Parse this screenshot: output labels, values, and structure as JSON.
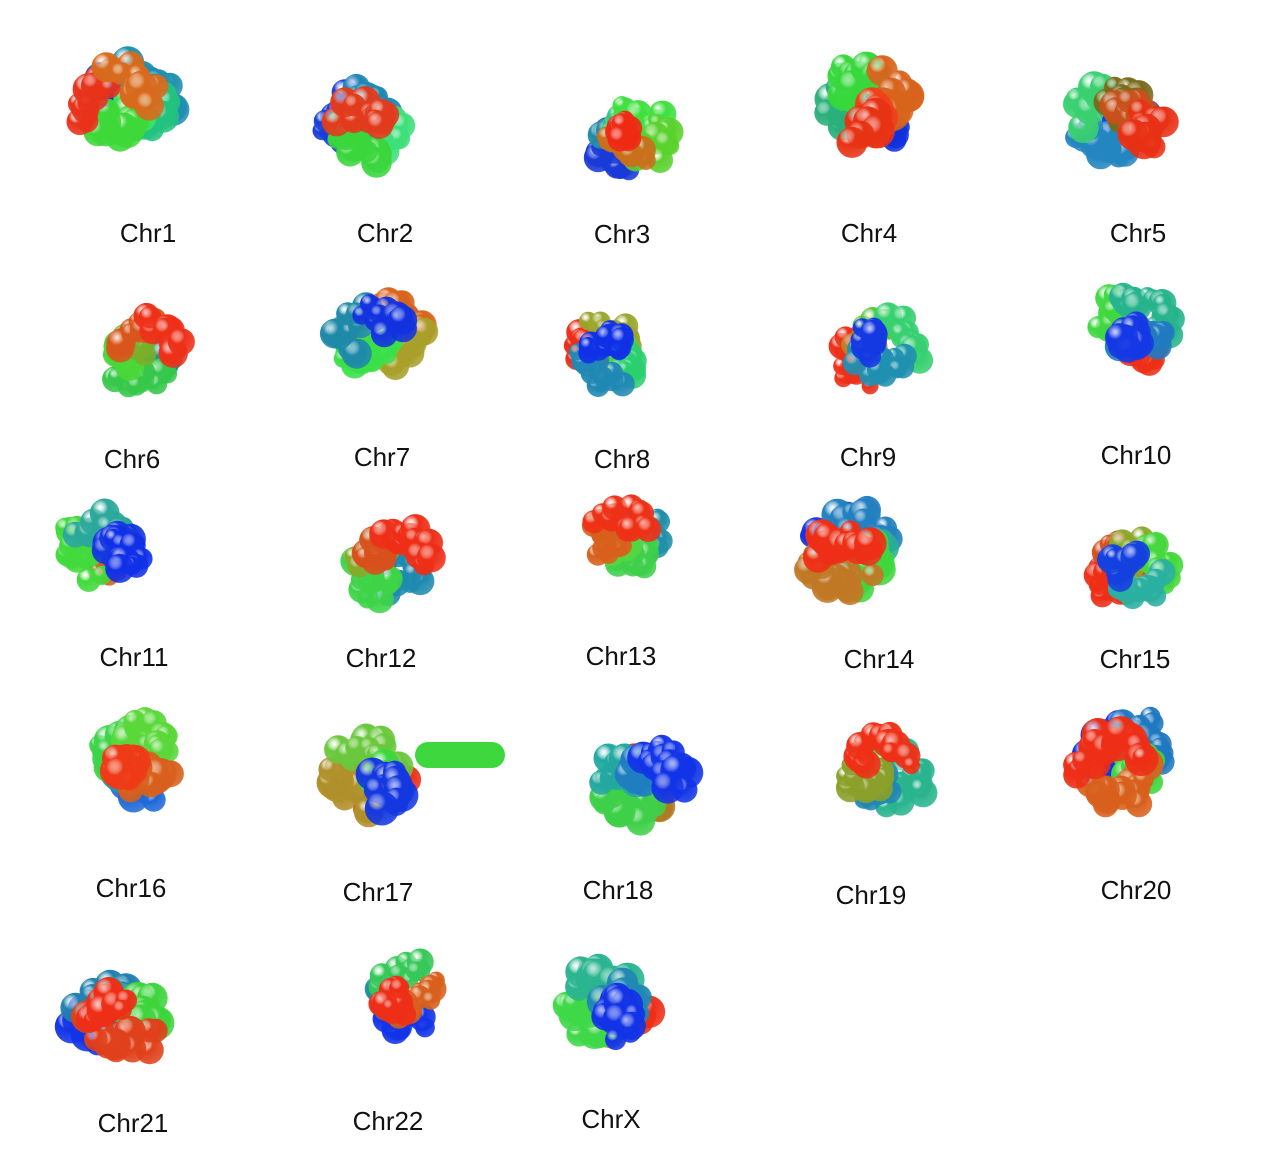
{
  "chromosomes": [
    {
      "label": "Chr1",
      "palette": [
        "#1434e0",
        "#1e8fb0",
        "#22c37e",
        "#39e85a",
        "#3ed838",
        "#e8321a",
        "#d86a1c"
      ]
    },
    {
      "label": "Chr2",
      "palette": [
        "#1a3fd8",
        "#2088b4",
        "#22c68a",
        "#3ee07a",
        "#3ad63c",
        "#e23a1c"
      ]
    },
    {
      "label": "Chr3",
      "palette": [
        "#1a3ad8",
        "#228aa6",
        "#34c87a",
        "#40e040",
        "#5ad22e",
        "#c8701c",
        "#ee2a14"
      ]
    },
    {
      "label": "Chr4",
      "palette": [
        "#1030e0",
        "#1f7ea8",
        "#2ab07a",
        "#36d83c",
        "#d8641c",
        "#f0401a",
        "#e83214"
      ]
    },
    {
      "label": "Chr5",
      "palette": [
        "#1640e6",
        "#1e5ce0",
        "#2386c0",
        "#3ad070",
        "#7a6a1a",
        "#c8501a",
        "#e83014"
      ]
    },
    {
      "label": "Chr6",
      "palette": [
        "#1030e8",
        "#1f8ea0",
        "#36c84a",
        "#4ad838",
        "#78b02a",
        "#d8561c",
        "#ee3018"
      ]
    },
    {
      "label": "Chr7",
      "palette": [
        "#ee3014",
        "#d8641c",
        "#a8a02a",
        "#68d43c",
        "#3ae048",
        "#1f8aa8",
        "#1232e0"
      ]
    },
    {
      "label": "Chr8",
      "palette": [
        "#ee2c16",
        "#9aa62c",
        "#52d040",
        "#2ad06e",
        "#2088b4",
        "#1030e6"
      ]
    },
    {
      "label": "Chr9",
      "palette": [
        "#ee3018",
        "#c08020",
        "#58c83a",
        "#36d070",
        "#2090b0",
        "#1438e2"
      ]
    },
    {
      "label": "Chr10",
      "palette": [
        "#ee2e16",
        "#d8561c",
        "#40d840",
        "#26b48c",
        "#1f7ac0",
        "#1538e6"
      ]
    },
    {
      "label": "Chr11",
      "palette": [
        "#ee2e16",
        "#d85a1c",
        "#42da3c",
        "#2aa89a",
        "#1438e0",
        "#1030e8"
      ]
    },
    {
      "label": "Chr12",
      "palette": [
        "#1634e6",
        "#1f8ab0",
        "#3ed448",
        "#8aa82a",
        "#d8501c",
        "#ee2e16"
      ]
    },
    {
      "label": "Chr13",
      "palette": [
        "#1638e2",
        "#2090a8",
        "#3ed04a",
        "#54d640",
        "#d8601c",
        "#ee3016"
      ]
    },
    {
      "label": "Chr14",
      "palette": [
        "#1234e6",
        "#2380c0",
        "#28b090",
        "#3ed83e",
        "#c07824",
        "#ee2e16"
      ]
    },
    {
      "label": "Chr15",
      "palette": [
        "#ee2e16",
        "#d8501c",
        "#8aa82a",
        "#46d83c",
        "#2ab0a0",
        "#1440e0"
      ]
    },
    {
      "label": "Chr16",
      "palette": [
        "#1e6ad8",
        "#2196b0",
        "#3ed44a",
        "#5ad83a",
        "#d8601c",
        "#ee3a16"
      ]
    },
    {
      "label": "Chr17",
      "palette": [
        "#ee2e16",
        "#d8601c",
        "#b0902a",
        "#6ac83c",
        "#3ed83e",
        "#1438e0"
      ]
    },
    {
      "label": "Chr18",
      "palette": [
        "#ee2e16",
        "#b07a22",
        "#3ed048",
        "#22a8a0",
        "#1f7ec0",
        "#1234e8"
      ]
    },
    {
      "label": "Chr19",
      "palette": [
        "#3ee04a",
        "#2ab48e",
        "#2088b4",
        "#8aa02a",
        "#ee3016"
      ]
    },
    {
      "label": "Chr20",
      "palette": [
        "#1234e8",
        "#1f78c0",
        "#3ed83e",
        "#d8601c",
        "#ee2e16"
      ]
    },
    {
      "label": "Chr21",
      "palette": [
        "#1234e6",
        "#2080b0",
        "#28a8a0",
        "#3ed43c",
        "#e0401a",
        "#ee2e16"
      ]
    },
    {
      "label": "Chr22",
      "palette": [
        "#1234e8",
        "#2290a0",
        "#36c858",
        "#d8601c",
        "#ee2e16"
      ]
    },
    {
      "label": "ChrX",
      "palette": [
        "#ee2e16",
        "#a8902a",
        "#3ed848",
        "#2ab490",
        "#2088b4",
        "#1234e6"
      ]
    }
  ]
}
